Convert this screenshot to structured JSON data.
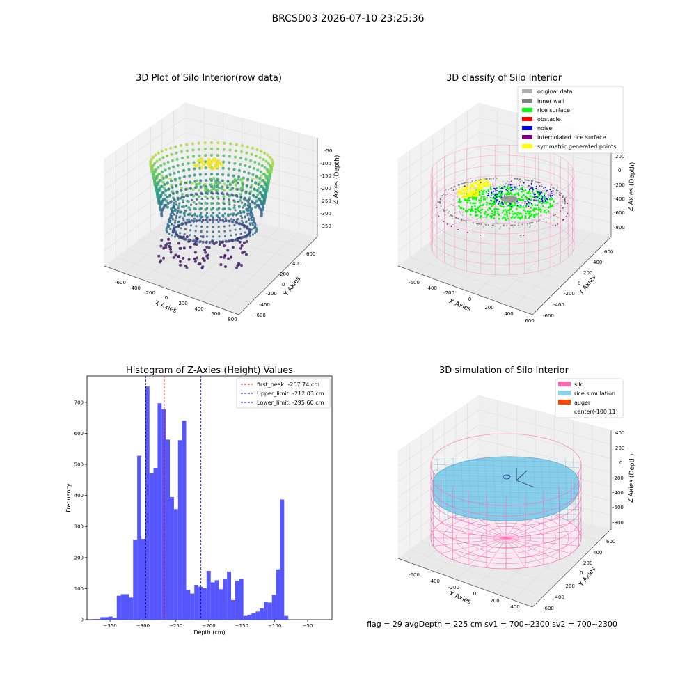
{
  "suptitle": "BRCSD03 2026-07-10 23:25:36",
  "footer": "flag = 29  avgDepth = 225 cm  sv1 = 700~2300  sv2 = 700~2300",
  "colors": {
    "viridis": [
      "#440154",
      "#3b528b",
      "#21918c",
      "#5ec962",
      "#fde725"
    ],
    "hist_bar": "#4d4dff",
    "peak_line": "#ff0000",
    "limit_line": "#0000cc",
    "silo": "#ff69b4",
    "rice": "#87ceeb",
    "pane": "#f2f2f2"
  },
  "chart_data": [
    {
      "type": "scatter",
      "title": "3D Plot of Silo Interior(row data)",
      "xlabel": "X Axies",
      "ylabel": "Y Axies",
      "zlabel": "Z Axies (Depth)",
      "xticks": [
        "-600",
        "-400",
        "-200",
        "0",
        "200",
        "400",
        "600",
        "800"
      ],
      "yticks": [
        "-600",
        "-400",
        "-200",
        "0",
        "200",
        "400",
        "600"
      ],
      "zticks": [
        "-50",
        "-100",
        "-150",
        "-200",
        "-250",
        "-300",
        "-350"
      ],
      "xlim": [
        -700,
        800
      ],
      "ylim": [
        -650,
        700
      ],
      "zlim": [
        -380,
        -20
      ],
      "colormap": "viridis"
    },
    {
      "type": "scatter",
      "title": "3D classify of Silo Interior",
      "ylabel": "Y Axies",
      "zlabel": "Z Axies (Depth)",
      "xlabel": "X Axies",
      "xticks": [
        "-600",
        "-400",
        "-200",
        "0",
        "200",
        "400",
        "600"
      ],
      "yticks": [
        "-600",
        "-400",
        "-200",
        "0",
        "200",
        "400",
        "600"
      ],
      "zticks": [
        "200",
        "0",
        "-200",
        "-400",
        "-600",
        "-800"
      ],
      "legend_position": "top-right",
      "legend": [
        {
          "label": "original data",
          "color": "#b0b0b0"
        },
        {
          "label": "inner wall",
          "color": "#808080"
        },
        {
          "label": "rice surface",
          "color": "#00ff00"
        },
        {
          "label": "obstacle",
          "color": "#ff0000"
        },
        {
          "label": "noise",
          "color": "#0000ff"
        },
        {
          "label": "interpolated rice surface",
          "color": "#800080"
        },
        {
          "label": "symmetric generated points",
          "color": "#ffff00"
        }
      ]
    },
    {
      "type": "bar",
      "title": "Histogram of Z-Axies (Height) Values",
      "xlabel": "Depth (cm)",
      "ylabel": "Frequency",
      "xlim": [
        -385,
        -13
      ],
      "ylim": [
        0,
        785
      ],
      "xticks": [
        -350,
        -300,
        -250,
        -200,
        -150,
        -100,
        -50
      ],
      "yticks": [
        0,
        100,
        200,
        300,
        400,
        500,
        600,
        700
      ],
      "bin_start": -377,
      "bin_width": 6.2,
      "values": [
        2,
        2,
        8,
        8,
        10,
        6,
        77,
        82,
        82,
        71,
        258,
        528,
        260,
        751,
        471,
        489,
        697,
        678,
        580,
        395,
        356,
        578,
        641,
        96,
        84,
        112,
        106,
        101,
        157,
        120,
        127,
        98,
        130,
        155,
        63,
        125,
        131,
        12,
        16,
        22,
        26,
        36,
        58,
        55,
        80,
        162,
        387,
        12
      ],
      "vlines": [
        {
          "x": -267.74,
          "label": "first_peak: -267.74 cm",
          "color": "#ff0000"
        },
        {
          "x": -212.03,
          "label": "Upper_limit: -212.03 cm",
          "color": "#0000cc"
        },
        {
          "x": -295.6,
          "label": "Lower_limit: -295.60 cm",
          "color": "#0000cc"
        }
      ],
      "legend_position": "top-right"
    },
    {
      "type": "surface",
      "title": "3D simulation of Silo Interior",
      "xlabel": "X Axies",
      "ylabel": "Y Axies",
      "zlabel": "Z Axies (Depth)",
      "xticks": [
        "-600",
        "-400",
        "-200",
        "0",
        "200",
        "400"
      ],
      "yticks": [
        "-600",
        "-400",
        "-200",
        "0",
        "200",
        "400",
        "600"
      ],
      "zticks": [
        "400",
        "200",
        "0",
        "-200",
        "-400",
        "-600",
        "-800"
      ],
      "legend_position": "top-right",
      "legend": [
        {
          "label": "silo",
          "color": "#ff69b4"
        },
        {
          "label": "rice simulation",
          "color": "#87ceeb"
        },
        {
          "label": "auger",
          "color": "#ff4500"
        },
        {
          "label": "center(-100,11)",
          "color": ""
        }
      ]
    }
  ]
}
